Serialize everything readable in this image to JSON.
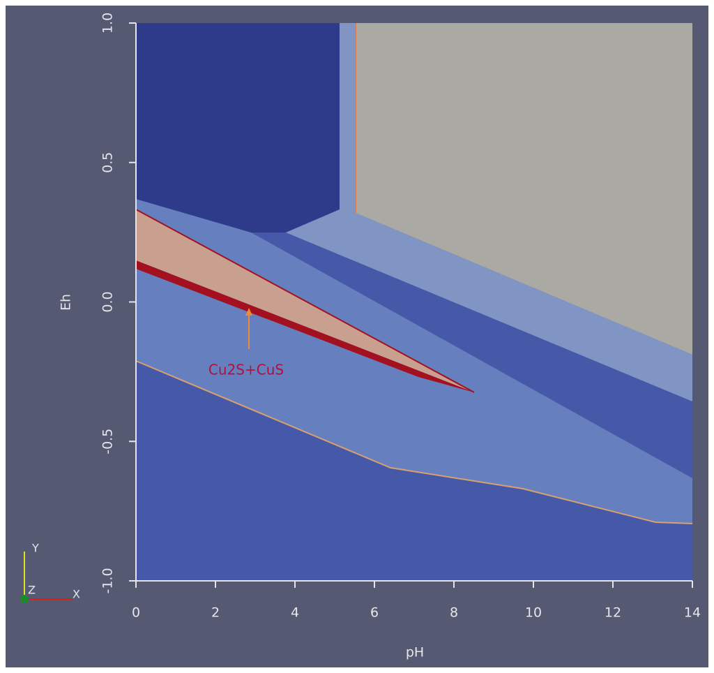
{
  "chart_data": {
    "type": "region",
    "x_label": "pH",
    "y_label": "Eh",
    "xlim": [
      0,
      14
    ],
    "ylim": [
      -1.0,
      1.0
    ],
    "xticks": [
      0,
      2,
      4,
      6,
      8,
      10,
      12,
      14
    ],
    "yticks": [
      {
        "value": -1.0,
        "label": "-1.0"
      },
      {
        "value": -0.5,
        "label": "-0.5"
      },
      {
        "value": 0,
        "label": "0.0"
      },
      {
        "value": 0.5,
        "label": "0.5"
      },
      {
        "value": 1.0,
        "label": "1.0"
      }
    ],
    "annotation": "Cu2S+CuS",
    "axes_triad": [
      "Y",
      "Z",
      "X"
    ]
  }
}
